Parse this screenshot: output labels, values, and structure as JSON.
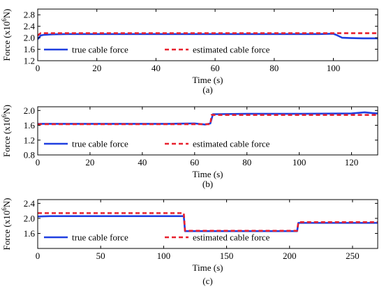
{
  "colors": {
    "true_series": "#1f3fe0",
    "estimated_series": "#e8212e",
    "axes": "#000000",
    "background": "#ffffff"
  },
  "chart_data": [
    {
      "type": "line",
      "panel_label": "(a)",
      "xlabel": "Time (s)",
      "ylabel_main": "Force (x10",
      "ylabel_sup": "6",
      "ylabel_tail": "N)",
      "xlim": [
        0,
        115
      ],
      "ylim": [
        1.2,
        3.0
      ],
      "xticks": [
        0,
        20,
        40,
        60,
        80,
        100
      ],
      "xtick_labels": [
        "0",
        "20",
        "40",
        "60",
        "80",
        "100"
      ],
      "yticks": [
        1.2,
        1.6,
        2.0,
        2.4,
        2.8
      ],
      "ytick_labels": [
        "1.2",
        "1.6",
        "2.0",
        "2.4",
        "2.8"
      ],
      "legend_position": "bottom",
      "series": [
        {
          "name": "true cable force",
          "style": "solid",
          "x": [
            0,
            1,
            2,
            5,
            10,
            20,
            40,
            60,
            80,
            95,
            100,
            101,
            103,
            106,
            110,
            115
          ],
          "y": [
            1.95,
            2.08,
            2.1,
            2.12,
            2.13,
            2.13,
            2.13,
            2.13,
            2.13,
            2.13,
            2.14,
            2.1,
            2.0,
            1.99,
            1.98,
            1.98
          ]
        },
        {
          "name": "estimated cable force",
          "style": "dashed",
          "x": [
            0,
            1,
            5,
            20,
            40,
            60,
            80,
            100,
            110,
            115
          ],
          "y": [
            2.08,
            2.16,
            2.16,
            2.16,
            2.16,
            2.16,
            2.16,
            2.16,
            2.16,
            2.16
          ]
        }
      ]
    },
    {
      "type": "line",
      "panel_label": "(b)",
      "xlabel": "Time (s)",
      "ylabel_main": "Force (x10",
      "ylabel_sup": "6",
      "ylabel_tail": "N)",
      "xlim": [
        0,
        130
      ],
      "ylim": [
        0.8,
        2.1
      ],
      "xticks": [
        0,
        20,
        40,
        60,
        80,
        100,
        120
      ],
      "xtick_labels": [
        "0",
        "20",
        "40",
        "60",
        "80",
        "100",
        "120"
      ],
      "yticks": [
        0.8,
        1.2,
        1.6,
        2.0
      ],
      "ytick_labels": [
        "0.8",
        "1.2",
        "1.6",
        "2.0"
      ],
      "legend_position": "bottom",
      "series": [
        {
          "name": "true cable force",
          "style": "solid",
          "x": [
            0,
            10,
            20,
            30,
            40,
            50,
            60,
            64,
            66,
            67,
            80,
            100,
            120,
            125,
            128,
            130
          ],
          "y": [
            1.64,
            1.64,
            1.64,
            1.64,
            1.64,
            1.64,
            1.65,
            1.62,
            1.65,
            1.9,
            1.91,
            1.91,
            1.92,
            1.95,
            1.93,
            1.92
          ]
        },
        {
          "name": "estimated cable force",
          "style": "dashed",
          "x": [
            0,
            20,
            40,
            60,
            66,
            66.5,
            80,
            100,
            120,
            130
          ],
          "y": [
            1.63,
            1.63,
            1.63,
            1.63,
            1.63,
            1.88,
            1.88,
            1.88,
            1.88,
            1.88
          ]
        }
      ]
    },
    {
      "type": "line",
      "panel_label": "(c)",
      "xlabel": "Time (s)",
      "ylabel_main": "Force (x10",
      "ylabel_sup": "6",
      "ylabel_tail": "N)",
      "xlim": [
        0,
        270
      ],
      "ylim": [
        1.2,
        2.5
      ],
      "xticks": [
        0,
        50,
        100,
        150,
        200,
        250
      ],
      "xtick_labels": [
        "0",
        "50",
        "100",
        "150",
        "200",
        "250"
      ],
      "yticks": [
        1.6,
        2.0,
        2.4
      ],
      "ytick_labels": [
        "1.6",
        "2.0",
        "2.4"
      ],
      "legend_position": "bottom",
      "series": [
        {
          "name": "true cable force",
          "style": "solid",
          "x": [
            0,
            10,
            50,
            100,
            116,
            117,
            150,
            200,
            206,
            207,
            240,
            270
          ],
          "y": [
            2.05,
            2.06,
            2.06,
            2.06,
            2.06,
            1.66,
            1.66,
            1.66,
            1.66,
            1.88,
            1.88,
            1.88
          ]
        },
        {
          "name": "estimated cable force",
          "style": "dashed",
          "x": [
            0,
            50,
            100,
            116,
            117,
            150,
            200,
            206,
            207,
            240,
            270
          ],
          "y": [
            2.14,
            2.14,
            2.14,
            2.14,
            1.67,
            1.67,
            1.67,
            1.67,
            1.9,
            1.9,
            1.9
          ]
        }
      ]
    }
  ]
}
